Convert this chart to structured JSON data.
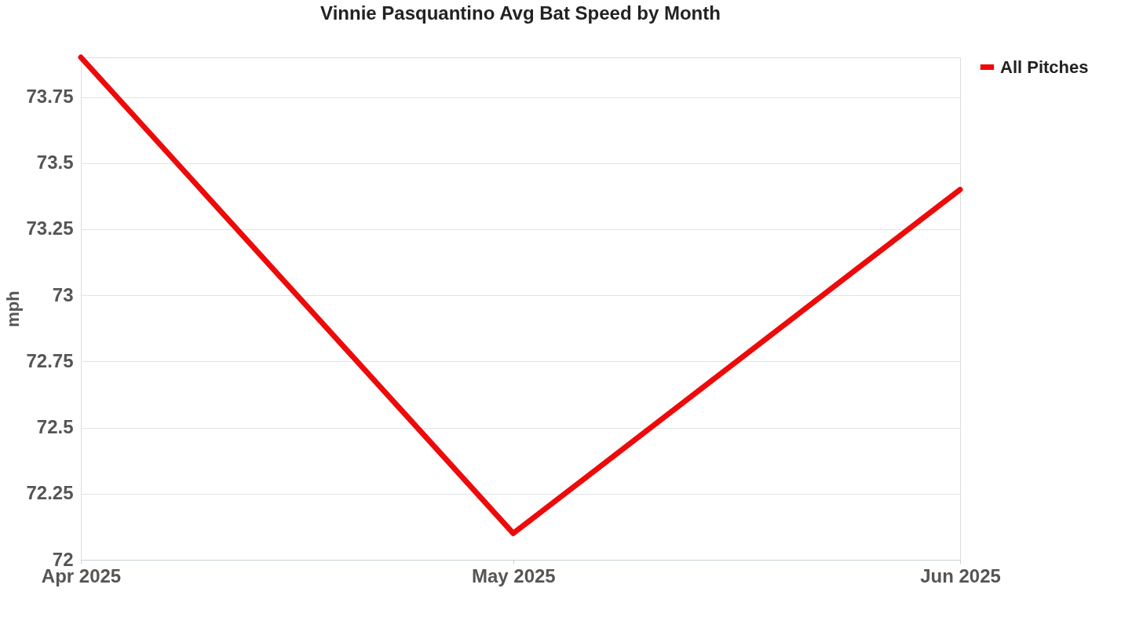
{
  "chart_data": {
    "type": "line",
    "title": "Vinnie Pasquantino Avg Bat Speed by Month",
    "ylabel": "mph",
    "x": [
      "2025-04",
      "2025-05",
      "2025-06"
    ],
    "series": [
      {
        "name": "All Pitches",
        "color": "#ee0a0a",
        "values": [
          73.9,
          72.1,
          73.4
        ]
      }
    ],
    "xlim": [
      "2025-04",
      "2025-06"
    ],
    "xticks": [
      {
        "value": "2025-04",
        "label": "Apr 2025"
      },
      {
        "value": "2025-05",
        "label": "May 2025"
      },
      {
        "value": "2025-06",
        "label": "Jun 2025"
      }
    ],
    "ylim": [
      72,
      73.9
    ],
    "yticks": [
      72,
      72.25,
      72.5,
      72.75,
      73,
      73.25,
      73.5,
      73.75
    ],
    "grid": "y",
    "legend": "right",
    "marker": "none",
    "line_style": "solid"
  }
}
